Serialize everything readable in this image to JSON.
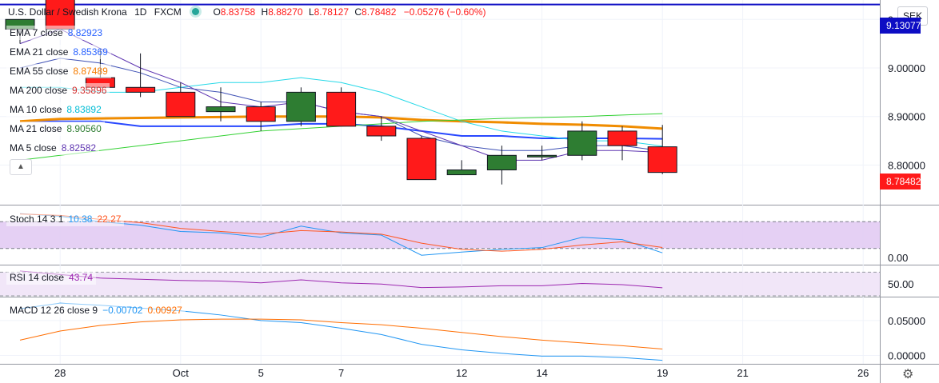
{
  "header": {
    "symbol_title": "U.S. Dollar / Swedish Krona",
    "interval": "1D",
    "source": "FXCM",
    "open_label": "O",
    "open": "8.83758",
    "high_label": "H",
    "high": "8.88270",
    "low_label": "L",
    "low": "8.78127",
    "close_label": "C",
    "close": "8.78482",
    "change": "−0.05276 (−0.60%)"
  },
  "currency": "SEK",
  "indicators": [
    {
      "label": "EMA 7 close",
      "value": "8.82923",
      "color": "#2962ff"
    },
    {
      "label": "EMA 21 close",
      "value": "8.85369",
      "color": "#2962ff"
    },
    {
      "label": "EMA 55 close",
      "value": "8.87489",
      "color": "#f57c00"
    },
    {
      "label": "MA 200 close",
      "value": "9.35896",
      "color": "#d32f2f"
    },
    {
      "label": "MA 10 close",
      "value": "8.83892",
      "color": "#00bcd4"
    },
    {
      "label": "MA 21 close",
      "value": "8.90560",
      "color": "#2e7d32"
    },
    {
      "label": "MA 5 close",
      "value": "8.82582",
      "color": "#5e35b1"
    }
  ],
  "price_axis": {
    "ticks": [
      "9.10000",
      "9.00000",
      "8.90000",
      "8.80000"
    ],
    "line_label": "9.13077",
    "last_price": "8.78482"
  },
  "stoch": {
    "label": "Stoch 14 3 1",
    "k": "10.38",
    "d": "22.27",
    "k_color": "#2196f3",
    "d_color": "#ff5722",
    "tick": "0.00"
  },
  "rsi": {
    "label": "RSI 14 close",
    "value": "43.74",
    "color": "#9c27b0",
    "tick": "50.00"
  },
  "macd": {
    "label": "MACD 12 26 close 9",
    "macd": "−0.00702",
    "signal": "0.00927",
    "macd_color": "#2196f3",
    "signal_color": "#ff6d00",
    "ticks": [
      "0.05000",
      "0.00000"
    ]
  },
  "x_ticks": [
    "28",
    "Oct",
    "5",
    "7",
    "12",
    "14",
    "19",
    "21",
    "26"
  ],
  "chart_data": [
    {
      "type": "candlestick",
      "title": "U.S. Dollar / Swedish Krona",
      "x": [
        "Sep 25",
        "Sep 28",
        "Sep 29",
        "Sep 30",
        "Oct 1",
        "Oct 2",
        "Oct 5",
        "Oct 6",
        "Oct 7",
        "Oct 8",
        "Oct 9",
        "Oct 12",
        "Oct 13",
        "Oct 14",
        "Oct 15",
        "Oct 16",
        "Oct 19"
      ],
      "open": [
        9.08,
        9.16,
        8.98,
        8.96,
        8.95,
        8.91,
        8.92,
        8.89,
        8.95,
        8.88,
        8.855,
        8.78,
        8.79,
        8.82,
        8.82,
        8.87,
        8.8376
      ],
      "high": [
        9.1,
        9.18,
        9.04,
        9.03,
        8.97,
        8.96,
        8.93,
        8.96,
        8.96,
        8.9,
        8.86,
        8.81,
        8.84,
        8.84,
        8.89,
        8.88,
        8.8827
      ],
      "low": [
        9.05,
        9.08,
        8.96,
        8.94,
        8.9,
        8.89,
        8.87,
        8.88,
        8.88,
        8.85,
        8.77,
        8.78,
        8.76,
        8.81,
        8.81,
        8.81,
        8.7813
      ],
      "close": [
        9.1,
        9.08,
        8.96,
        8.95,
        8.9,
        8.92,
        8.89,
        8.95,
        8.88,
        8.86,
        8.77,
        8.79,
        8.82,
        8.82,
        8.87,
        8.84,
        8.7848
      ],
      "ylim": [
        8.72,
        9.14
      ],
      "horizontal_line": 9.13077,
      "overlays": [
        {
          "name": "EMA 7 close",
          "values": [
            9.0,
            9.02,
            9.01,
            8.99,
            8.96,
            8.95,
            8.93,
            8.93,
            8.91,
            8.9,
            8.86,
            8.84,
            8.83,
            8.83,
            8.84,
            8.84,
            8.829
          ]
        },
        {
          "name": "EMA 21 close",
          "values": [
            8.89,
            8.89,
            8.89,
            8.88,
            8.88,
            8.88,
            8.88,
            8.885,
            8.885,
            8.88,
            8.87,
            8.86,
            8.86,
            8.855,
            8.855,
            8.855,
            8.854
          ]
        },
        {
          "name": "EMA 55 close",
          "values": [
            8.89,
            8.895,
            8.896,
            8.897,
            8.898,
            8.899,
            8.9,
            8.9,
            8.9,
            8.898,
            8.893,
            8.89,
            8.888,
            8.885,
            8.883,
            8.88,
            8.875
          ]
        },
        {
          "name": "MA 200 close",
          "values": [
            9.38,
            9.378,
            9.376,
            9.374,
            9.372,
            9.37,
            9.368,
            9.366,
            9.364,
            9.363,
            9.362,
            9.361,
            9.36,
            9.36,
            9.359,
            9.359,
            9.359
          ]
        },
        {
          "name": "MA 10 close",
          "values": [
            8.96,
            8.96,
            8.95,
            8.95,
            8.96,
            8.97,
            8.97,
            8.98,
            8.97,
            8.95,
            8.92,
            8.89,
            8.87,
            8.86,
            8.85,
            8.85,
            8.839
          ]
        },
        {
          "name": "MA 21 close",
          "values": [
            8.81,
            8.82,
            8.83,
            8.84,
            8.85,
            8.86,
            8.87,
            8.875,
            8.88,
            8.885,
            8.89,
            8.893,
            8.896,
            8.898,
            8.9,
            8.903,
            8.906
          ]
        },
        {
          "name": "MA 5 close",
          "values": [
            9.05,
            9.08,
            9.04,
            9.0,
            8.97,
            8.93,
            8.92,
            8.93,
            8.91,
            8.9,
            8.87,
            8.84,
            8.81,
            8.81,
            8.83,
            8.83,
            8.826
          ]
        }
      ]
    },
    {
      "type": "line",
      "title": "Stoch 14 3 1",
      "x": [
        "Sep 25",
        "Sep 28",
        "Sep 29",
        "Sep 30",
        "Oct 1",
        "Oct 2",
        "Oct 5",
        "Oct 6",
        "Oct 7",
        "Oct 8",
        "Oct 9",
        "Oct 12",
        "Oct 13",
        "Oct 14",
        "Oct 15",
        "Oct 16",
        "Oct 19"
      ],
      "series": [
        {
          "name": "%K",
          "values": [
            98,
            92,
            80,
            72,
            58,
            55,
            45,
            70,
            55,
            50,
            5,
            12,
            18,
            22,
            45,
            40,
            10.38
          ]
        },
        {
          "name": "%D",
          "values": [
            97,
            94,
            85,
            78,
            65,
            58,
            52,
            60,
            57,
            52,
            32,
            18,
            14,
            18,
            28,
            35,
            22.27
          ]
        }
      ],
      "ylim": [
        0,
        100
      ],
      "bands": [
        20,
        80
      ]
    },
    {
      "type": "line",
      "title": "RSI 14 close",
      "x": [
        "Sep 25",
        "Sep 28",
        "Sep 29",
        "Sep 30",
        "Oct 1",
        "Oct 2",
        "Oct 5",
        "Oct 6",
        "Oct 7",
        "Oct 8",
        "Oct 9",
        "Oct 12",
        "Oct 13",
        "Oct 14",
        "Oct 15",
        "Oct 16",
        "Oct 19"
      ],
      "series": [
        {
          "name": "RSI",
          "values": [
            72,
            66,
            60,
            58,
            56,
            55,
            52,
            57,
            52,
            50,
            44,
            45,
            47,
            47,
            51,
            49,
            43.74
          ]
        }
      ],
      "ylim": [
        30,
        80
      ],
      "bands": [
        30,
        70
      ]
    },
    {
      "type": "line",
      "title": "MACD 12 26 close 9",
      "x": [
        "Sep 25",
        "Sep 28",
        "Sep 29",
        "Sep 30",
        "Oct 1",
        "Oct 2",
        "Oct 5",
        "Oct 6",
        "Oct 7",
        "Oct 8",
        "Oct 9",
        "Oct 12",
        "Oct 13",
        "Oct 14",
        "Oct 15",
        "Oct 16",
        "Oct 19"
      ],
      "series": [
        {
          "name": "MACD",
          "values": [
            0.067,
            0.075,
            0.072,
            0.068,
            0.064,
            0.058,
            0.05,
            0.047,
            0.039,
            0.03,
            0.016,
            0.008,
            0.003,
            -0.001,
            -0.001,
            -0.003,
            -0.00702
          ]
        },
        {
          "name": "Signal",
          "values": [
            0.022,
            0.035,
            0.043,
            0.048,
            0.051,
            0.052,
            0.052,
            0.051,
            0.047,
            0.044,
            0.039,
            0.033,
            0.027,
            0.022,
            0.018,
            0.014,
            0.00927
          ]
        }
      ],
      "ylim": [
        -0.012,
        0.082
      ]
    }
  ]
}
